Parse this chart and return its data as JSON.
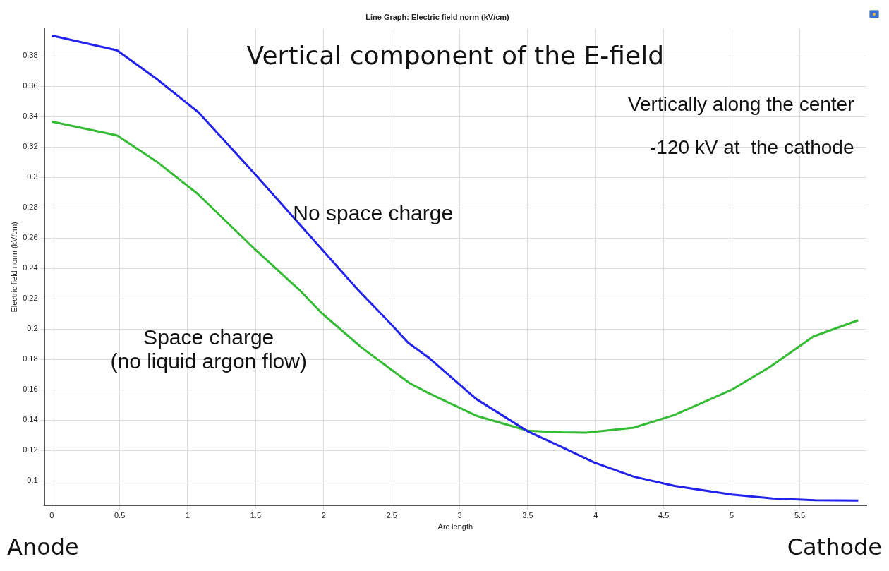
{
  "chart_data": {
    "type": "line",
    "title": "Line Graph: Electric field norm (kV/cm)",
    "xlabel": "Arc length",
    "ylabel": "Electric field norm (kV/cm)",
    "annotations": [
      "Vertical component of the E-field",
      "Vertically along the center",
      "-120 kV at  the cathode",
      "Anode",
      "Cathode"
    ],
    "xlim": [
      -0.055,
      5.99
    ],
    "xticks": [
      0,
      0.5,
      1,
      1.5,
      2,
      2.5,
      3,
      3.5,
      4,
      4.5,
      5,
      5.5
    ],
    "ylim": [
      0.084,
      0.3977
    ],
    "yticks": [
      0.1,
      0.12,
      0.14,
      0.16,
      0.18,
      0.2,
      0.22,
      0.24,
      0.26,
      0.28,
      0.3,
      0.32,
      0.34,
      0.36,
      0.38
    ],
    "grid": true,
    "legend": false,
    "marker": "none",
    "line_style": "solid",
    "series": [
      {
        "name": "No space charge",
        "color": "#2222ee",
        "x": [
          0,
          0.48,
          0.77,
          1.08,
          1.5,
          2.25,
          2.49,
          2.62,
          2.77,
          3.12,
          3.5,
          3.75,
          3.99,
          4.28,
          4.58,
          5.0,
          5.3,
          5.61,
          5.93
        ],
        "values": [
          0.3935,
          0.3837,
          0.365,
          0.3428,
          0.3016,
          0.226,
          0.2037,
          0.191,
          0.1813,
          0.154,
          0.1326,
          0.1223,
          0.112,
          0.1027,
          0.0966,
          0.0909,
          0.0883,
          0.0872,
          0.0869
        ]
      },
      {
        "name": "Space charge\n(no liquid argon flow)",
        "color": "#33bb33",
        "x": [
          0,
          0.48,
          0.77,
          1.07,
          1.5,
          1.82,
          1.99,
          2.28,
          2.63,
          2.77,
          3.12,
          3.5,
          3.75,
          3.93,
          4.28,
          4.58,
          5.0,
          5.28,
          5.6,
          5.93
        ],
        "values": [
          0.3367,
          0.3277,
          0.3105,
          0.2894,
          0.2521,
          0.2259,
          0.2101,
          0.1877,
          0.1644,
          0.1578,
          0.1429,
          0.133,
          0.132,
          0.1317,
          0.135,
          0.1434,
          0.16,
          0.175,
          0.1951,
          0.2058
        ]
      }
    ]
  }
}
